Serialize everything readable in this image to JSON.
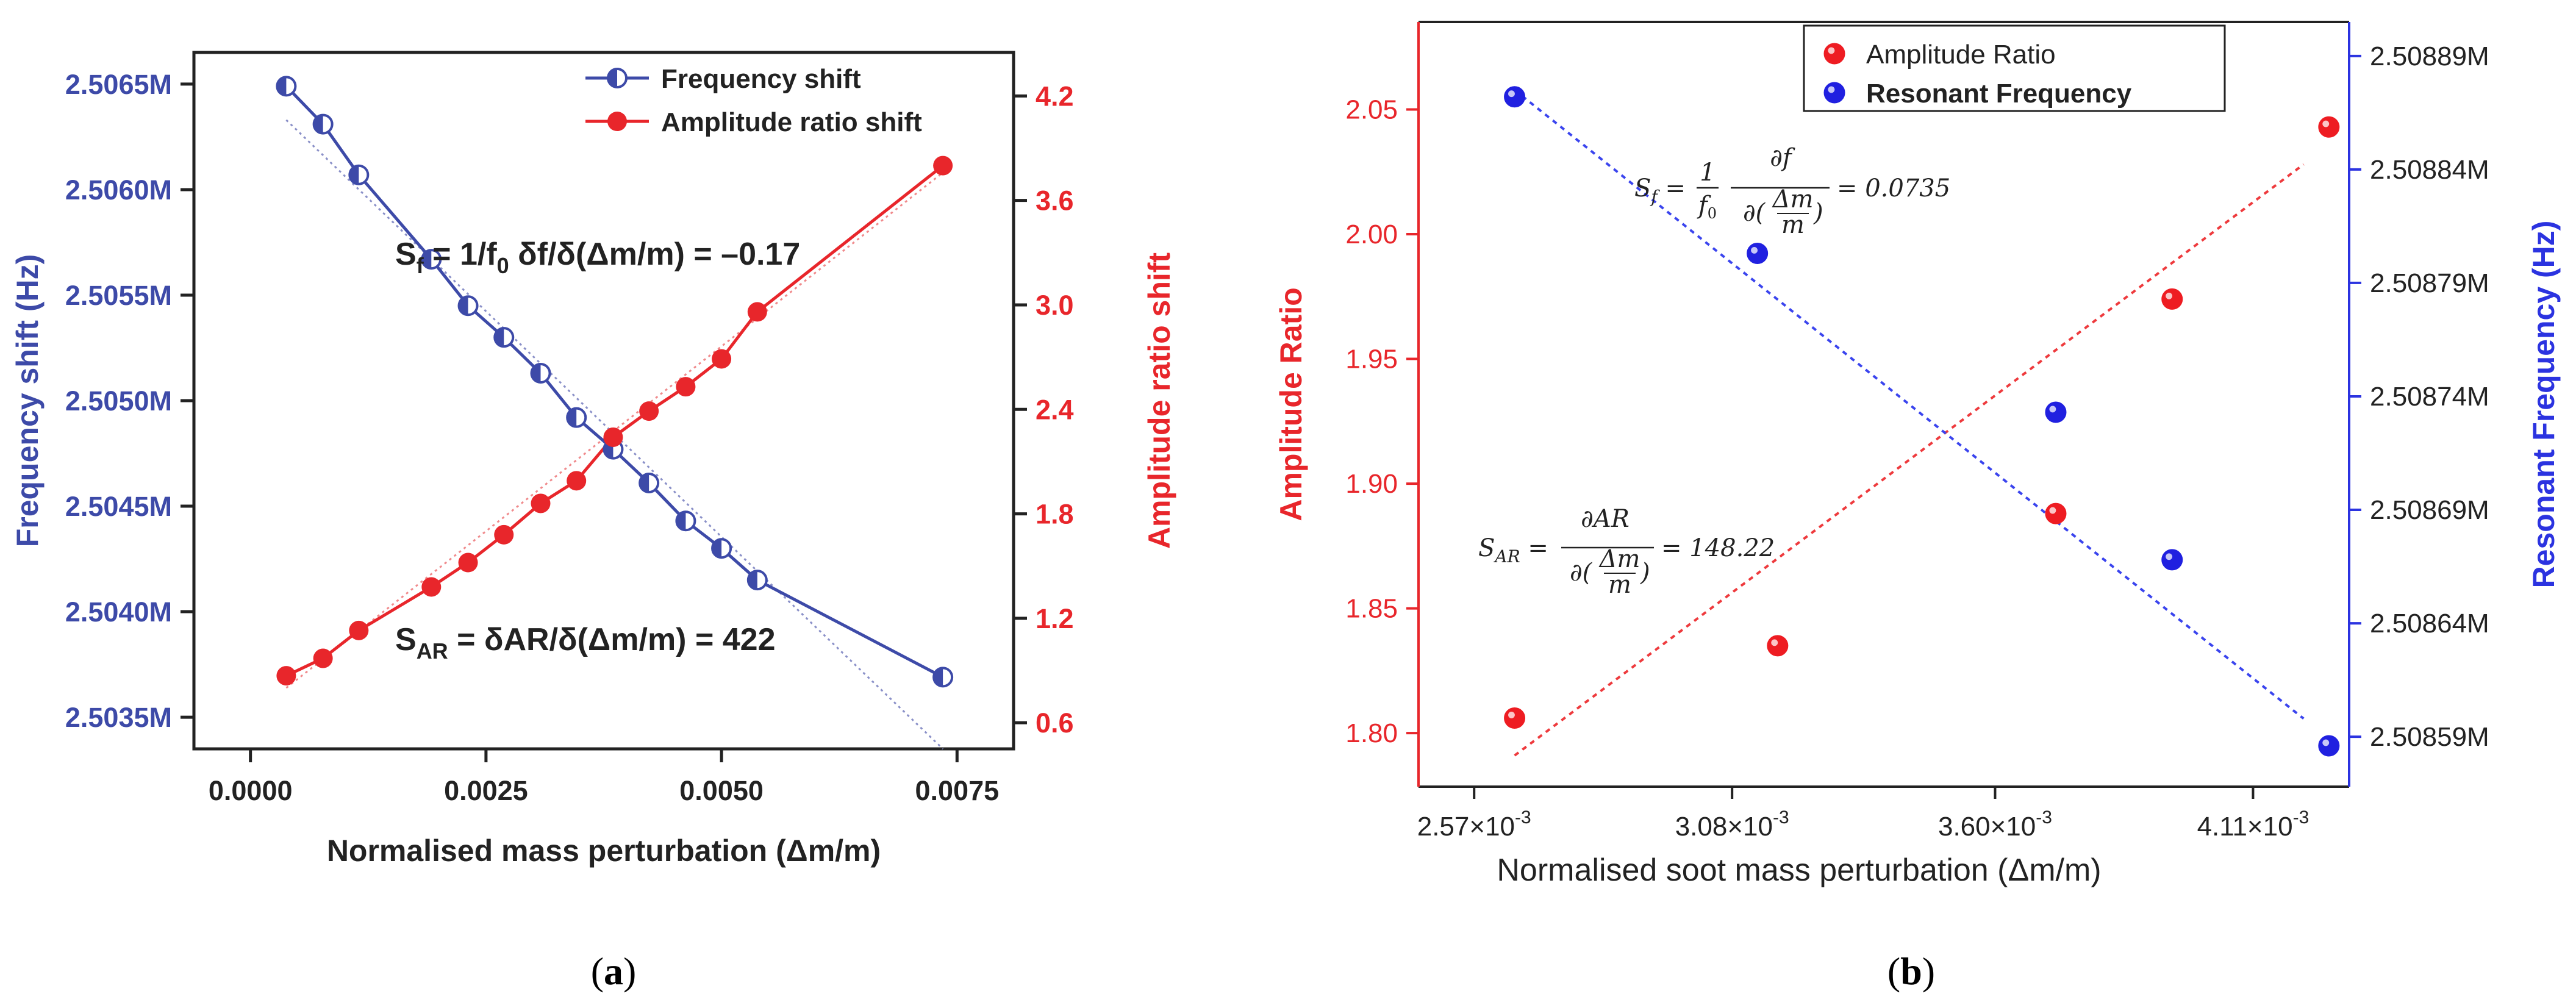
{
  "colors": {
    "blue": "#3d4aa8",
    "red": "#e8262b",
    "blue_b": "#2b33e0",
    "dark": "#222222"
  },
  "chart_data": [
    {
      "type": "line",
      "panel": "a",
      "caption": "a",
      "xlabel": "Normalised mass perturbation (Δm/m)",
      "xlim": [
        -0.0006,
        0.0081
      ],
      "xticks": [
        "0.0000",
        "0.0025",
        "0.0050",
        "0.0075"
      ],
      "xtick_values": [
        0.0,
        0.0025,
        0.005,
        0.0075
      ],
      "y1": {
        "label": "Frequency shift (Hz)",
        "ylim": [
          2.50335,
          2.50665
        ],
        "ticks": [
          "2.5035M",
          "2.5040M",
          "2.5045M",
          "2.5050M",
          "2.5055M",
          "2.5060M",
          "2.5065M"
        ],
        "tick_values": [
          2.5035,
          2.504,
          2.5045,
          2.505,
          2.5055,
          2.506,
          2.5065
        ]
      },
      "y2": {
        "label": "Amplitude ratio shift",
        "ylim": [
          0.45,
          4.45
        ],
        "ticks": [
          "0.6",
          "1.2",
          "1.8",
          "2.4",
          "3.0",
          "3.6",
          "4.2"
        ],
        "tick_values": [
          0.6,
          1.2,
          1.8,
          2.4,
          3.0,
          3.6,
          4.2
        ]
      },
      "series": [
        {
          "name": "Frequency shift",
          "axis": "y1",
          "x": [
            0.00038,
            0.00077,
            0.00115,
            0.00192,
            0.00231,
            0.00269,
            0.00308,
            0.00346,
            0.00385,
            0.00423,
            0.00462,
            0.005,
            0.00538,
            0.00735
          ],
          "y": [
            2.50649,
            2.50631,
            2.50607,
            2.50567,
            2.50545,
            2.5053,
            2.50513,
            2.50492,
            2.50477,
            2.50461,
            2.50443,
            2.5043,
            2.50415,
            2.50369
          ]
        },
        {
          "name": "Amplitude ratio shift",
          "axis": "y2",
          "x": [
            0.00038,
            0.00077,
            0.00115,
            0.00192,
            0.00231,
            0.00269,
            0.00308,
            0.00346,
            0.00385,
            0.00423,
            0.00462,
            0.005,
            0.00538,
            0.00735
          ],
          "y": [
            0.87,
            0.97,
            1.13,
            1.38,
            1.52,
            1.68,
            1.86,
            1.99,
            2.24,
            2.39,
            2.53,
            2.69,
            2.96,
            3.8
          ]
        }
      ],
      "fits": [
        {
          "series": "Frequency shift",
          "x": [
            0.00038,
            0.00735
          ],
          "y": [
            2.50633,
            2.50335
          ]
        },
        {
          "series": "Amplitude ratio shift",
          "x": [
            0.00038,
            0.00735
          ],
          "y": [
            0.8,
            3.76
          ]
        }
      ],
      "annotations": [
        {
          "main": "S",
          "sub": "f",
          "text": " = 1/f",
          "sub2": "0",
          "tail": " δf/δ(Δm/m) = –0.17"
        },
        {
          "main": "S",
          "sub": "AR",
          "text": " = δAR/δ(Δm/m) = 422"
        }
      ]
    },
    {
      "type": "scatter",
      "panel": "b",
      "caption": "b",
      "xlabel": "Normalised soot mass perturbation (Δm/m)",
      "xlim": [
        0.00246,
        0.0043
      ],
      "xticks": [
        "2.57×10",
        "3.08×10",
        "3.60×10",
        "4.11×10"
      ],
      "xtick_exp": "-3",
      "xtick_values": [
        0.00257,
        0.00308,
        0.0036,
        0.00411
      ],
      "y1": {
        "label": "Amplitude Ratio",
        "ylim": [
          1.7785,
          2.0851
        ],
        "ticks": [
          "1.80",
          "1.85",
          "1.90",
          "1.95",
          "2.00",
          "2.05"
        ],
        "tick_values": [
          1.8,
          1.85,
          1.9,
          1.95,
          2.0,
          2.05
        ]
      },
      "y2": {
        "label": "Resonant Frequency (Hz)",
        "ylim": [
          2.508568,
          2.508905
        ],
        "ticks": [
          "2.50859M",
          "2.50864M",
          "2.50869M",
          "2.50874M",
          "2.50879M",
          "2.50884M",
          "2.50889M"
        ],
        "tick_values": [
          2.50859,
          2.50864,
          2.50869,
          2.50874,
          2.50879,
          2.50884,
          2.50889
        ]
      },
      "series": [
        {
          "name": "Amplitude Ratio",
          "axis": "y1",
          "x": [
            0.00265,
            0.00317,
            0.00372,
            0.00395,
            0.00426
          ],
          "y": [
            1.806,
            1.835,
            1.888,
            1.974,
            2.043
          ]
        },
        {
          "name": "Resonant Frequency",
          "axis": "y2",
          "x": [
            0.00265,
            0.00313,
            0.00372,
            0.00395,
            0.00426
          ],
          "y": [
            2.508872,
            2.508803,
            2.508733,
            2.508668,
            2.508586
          ]
        }
      ],
      "fits": [
        {
          "series": "Amplitude Ratio",
          "x": [
            0.00265,
            0.00421
          ],
          "y": [
            1.791,
            2.028
          ]
        },
        {
          "series": "Resonant Frequency",
          "x": [
            0.00265,
            0.00421
          ],
          "y": [
            2.508875,
            2.508598
          ]
        }
      ],
      "annotations": [
        {
          "label": "S",
          "sub": "f",
          "value": "= 0.0735"
        },
        {
          "label": "S",
          "sub": "AR",
          "value": "= 148.22"
        }
      ]
    }
  ]
}
